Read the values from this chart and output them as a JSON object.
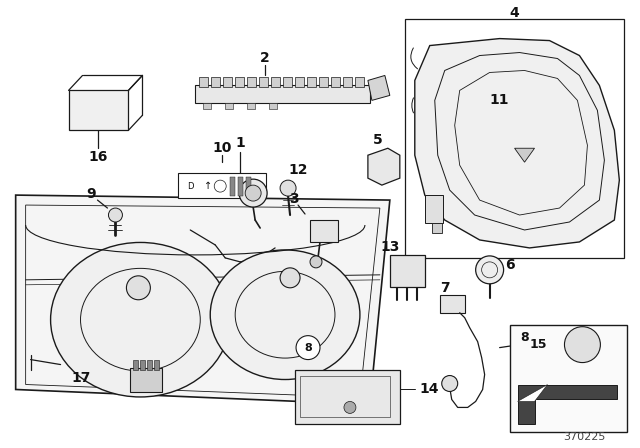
{
  "bg_color": "#ffffff",
  "part_number": "370225",
  "line_color": "#1a1a1a",
  "text_color": "#111111",
  "lw_main": 0.9,
  "lw_thin": 0.6,
  "label_fontsize": 9
}
